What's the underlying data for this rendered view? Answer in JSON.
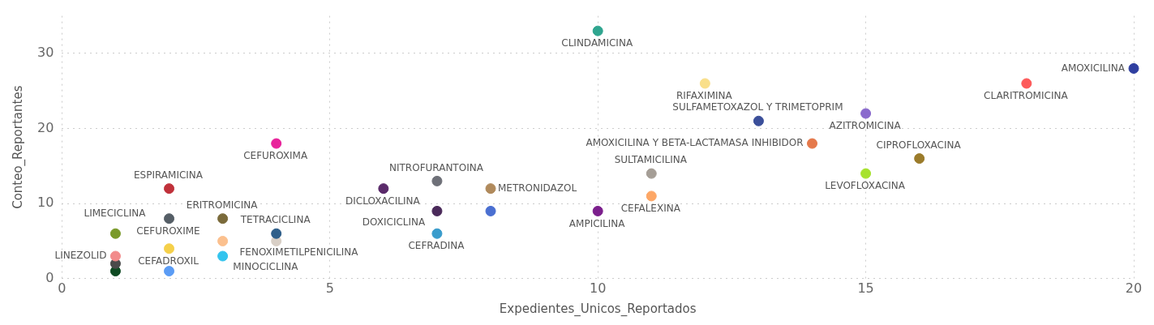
{
  "chart_data": {
    "type": "scatter",
    "xlabel": "Expedientes_Unicos_Reportados",
    "ylabel": "Conteo_Reportantes",
    "xlim": [
      0,
      20
    ],
    "xticks": [
      0,
      5,
      10,
      15,
      20
    ],
    "ylim": [
      0,
      35
    ],
    "yticks": [
      0,
      10,
      20,
      30
    ],
    "grid": true,
    "legend": false,
    "marker": "circle",
    "series": [
      {
        "name": "CLINDAMICINA",
        "color": "#2fa58f",
        "x": [
          10
        ],
        "values": [
          33
        ]
      },
      {
        "name": "AMOXICILINA",
        "color": "#2f3fa0",
        "x": [
          20
        ],
        "values": [
          28
        ]
      },
      {
        "name": "CLARITROMICINA",
        "color": "#fd5a5a",
        "x": [
          18
        ],
        "values": [
          26
        ]
      },
      {
        "name": "RIFAXIMINA",
        "color": "#f9df8a",
        "x": [
          12
        ],
        "values": [
          26
        ]
      },
      {
        "name": "SULFAMETOXAZOL Y TRIMETOPRIM",
        "color": "#3b4f9a",
        "x": [
          13
        ],
        "values": [
          21
        ]
      },
      {
        "name": "AZITROMICINA",
        "color": "#8a6acd",
        "x": [
          15
        ],
        "values": [
          22
        ]
      },
      {
        "name": "AMOXICILINA Y BETA-LACTAMASA INHIBIDOR",
        "color": "#e5794b",
        "x": [
          14
        ],
        "values": [
          18
        ]
      },
      {
        "name": "CIPROFLOXACINA",
        "color": "#9b7b2a",
        "x": [
          16
        ],
        "values": [
          16
        ]
      },
      {
        "name": "LEVOFLOXACINA",
        "color": "#a7e22f",
        "x": [
          15
        ],
        "values": [
          14
        ]
      },
      {
        "name": "SULTAMICILINA",
        "color": "#a59e96",
        "x": [
          11
        ],
        "values": [
          14
        ]
      },
      {
        "name": "CEFALEXINA",
        "color": "#fda766",
        "x": [
          11
        ],
        "values": [
          11
        ]
      },
      {
        "name": "AMPICILINA",
        "color": "#7b1f8c",
        "x": [
          10
        ],
        "values": [
          9
        ]
      },
      {
        "name": "METRONIDAZOL",
        "color": "#b08a5c",
        "x": [
          8
        ],
        "values": [
          12
        ]
      },
      {
        "color": "#4a6fd1",
        "x": [
          8
        ],
        "values": [
          9
        ]
      },
      {
        "name": "NITROFURANTOINA",
        "color": "#6e7078",
        "x": [
          7
        ],
        "values": [
          13
        ]
      },
      {
        "name": "DICLOXACILINA",
        "color": "#5a2a6a",
        "x": [
          6
        ],
        "values": [
          12
        ]
      },
      {
        "name": "DOXICICLINA",
        "color": "#4a2a5a",
        "x": [
          7
        ],
        "values": [
          9
        ]
      },
      {
        "name": "CEFRADINA",
        "color": "#3a9ccc",
        "x": [
          7
        ],
        "values": [
          6
        ]
      },
      {
        "name": "CEFUROXIMA",
        "color": "#e8239b",
        "x": [
          4
        ],
        "values": [
          18
        ]
      },
      {
        "name": "ESPIRAMICINA",
        "color": "#c0313a",
        "x": [
          2
        ],
        "values": [
          12
        ]
      },
      {
        "name": "CEFUROXIME",
        "color": "#555e66",
        "x": [
          2
        ],
        "values": [
          8
        ]
      },
      {
        "name": "LIMECICLINA",
        "color": "#7a9a2a",
        "x": [
          1
        ],
        "values": [
          6
        ]
      },
      {
        "name": "LINEZOLID",
        "color": "#f28b8b",
        "x": [
          1
        ],
        "values": [
          3
        ]
      },
      {
        "color": "#4a4a4a",
        "x": [
          1
        ],
        "values": [
          2
        ]
      },
      {
        "color": "#0e4a22",
        "x": [
          1
        ],
        "values": [
          1
        ]
      },
      {
        "name": "CEFADROXIL",
        "color": "#f5d04a",
        "x": [
          2
        ],
        "values": [
          4
        ]
      },
      {
        "color": "#5b9cf5",
        "x": [
          2
        ],
        "values": [
          1
        ]
      },
      {
        "name": "ERITROMICINA",
        "color": "#7a6a3a",
        "x": [
          3
        ],
        "values": [
          8
        ]
      },
      {
        "name": "FENOXIMETILPENICILINA",
        "color": "#fbc08e",
        "x": [
          3
        ],
        "values": [
          5
        ]
      },
      {
        "name": "MINOCICLINA",
        "color": "#33c4ee",
        "x": [
          3
        ],
        "values": [
          3
        ]
      },
      {
        "name": "TETRACICLINA",
        "color": "#2f5f8a",
        "x": [
          4
        ],
        "values": [
          6
        ]
      },
      {
        "color": "#d8cfc6",
        "x": [
          4
        ],
        "values": [
          5
        ]
      }
    ]
  }
}
